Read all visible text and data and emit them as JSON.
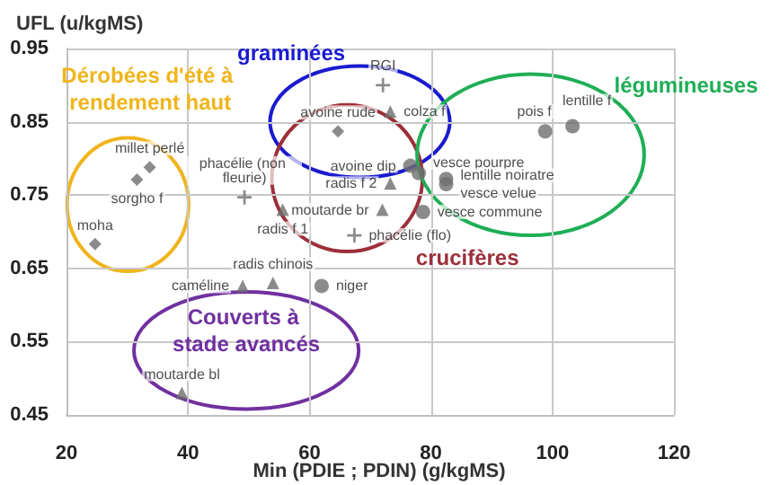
{
  "chart_data": {
    "type": "scatter",
    "xlabel": "Min (PDIE ; PDIN) (g/kgMS)",
    "ylabel": "UFL (u/kgMS)",
    "xlim": [
      20,
      120
    ],
    "xticks": [
      20,
      40,
      60,
      80,
      100,
      120
    ],
    "ylim": [
      0.45,
      0.95
    ],
    "yticks": [
      0.45,
      0.55,
      0.65,
      0.75,
      0.85,
      0.95
    ],
    "grid": true,
    "annotations": [
      "Dérobées d'été à rendement haut",
      "graminées",
      "crucifères",
      "légumineuses",
      "Couverts à stade avancés"
    ],
    "series": [
      {
        "marker": "diamond",
        "color": "#6e6e6e",
        "x": [
          24.7,
          31.6,
          33.7,
          64.7
        ],
        "values": [
          0.683,
          0.771,
          0.788,
          0.837
        ],
        "value_labels": [
          "moha",
          "sorgho f",
          "millet perlé",
          "avoine rude"
        ]
      },
      {
        "marker": "triangle",
        "color": "#6e6e6e",
        "x": [
          55.6,
          73.3,
          73.3,
          72,
          54,
          49,
          39
        ],
        "values": [
          0.73,
          0.864,
          0.766,
          0.73,
          0.63,
          0.626,
          0.48
        ],
        "value_labels": [
          "radis f 1",
          "colza f",
          "radis f 2",
          "moutarde br",
          "radis chinois",
          "caméline",
          "moutarde bl"
        ]
      },
      {
        "marker": "cross",
        "color": "#6e6e6e",
        "x": [
          49.3,
          67.4,
          72.1
        ],
        "values": [
          0.747,
          0.695,
          0.9
        ],
        "value_labels": [
          "phacélie (non fleurie)",
          "phacélie (flo)",
          "RGI"
        ]
      },
      {
        "marker": "circle",
        "color": "#6e6e6e",
        "x": [
          76.6,
          78,
          82.5,
          82.5,
          78.7,
          98.8,
          103.3,
          62
        ],
        "values": [
          0.79,
          0.78,
          0.772,
          0.765,
          0.727,
          0.837,
          0.844,
          0.626
        ],
        "value_labels": [
          "avoine dip",
          "vesce pourpre",
          "lentille noiratre",
          "vesce velue",
          "vesce commune",
          "pois f",
          "lentille f",
          "niger"
        ]
      }
    ]
  }
}
